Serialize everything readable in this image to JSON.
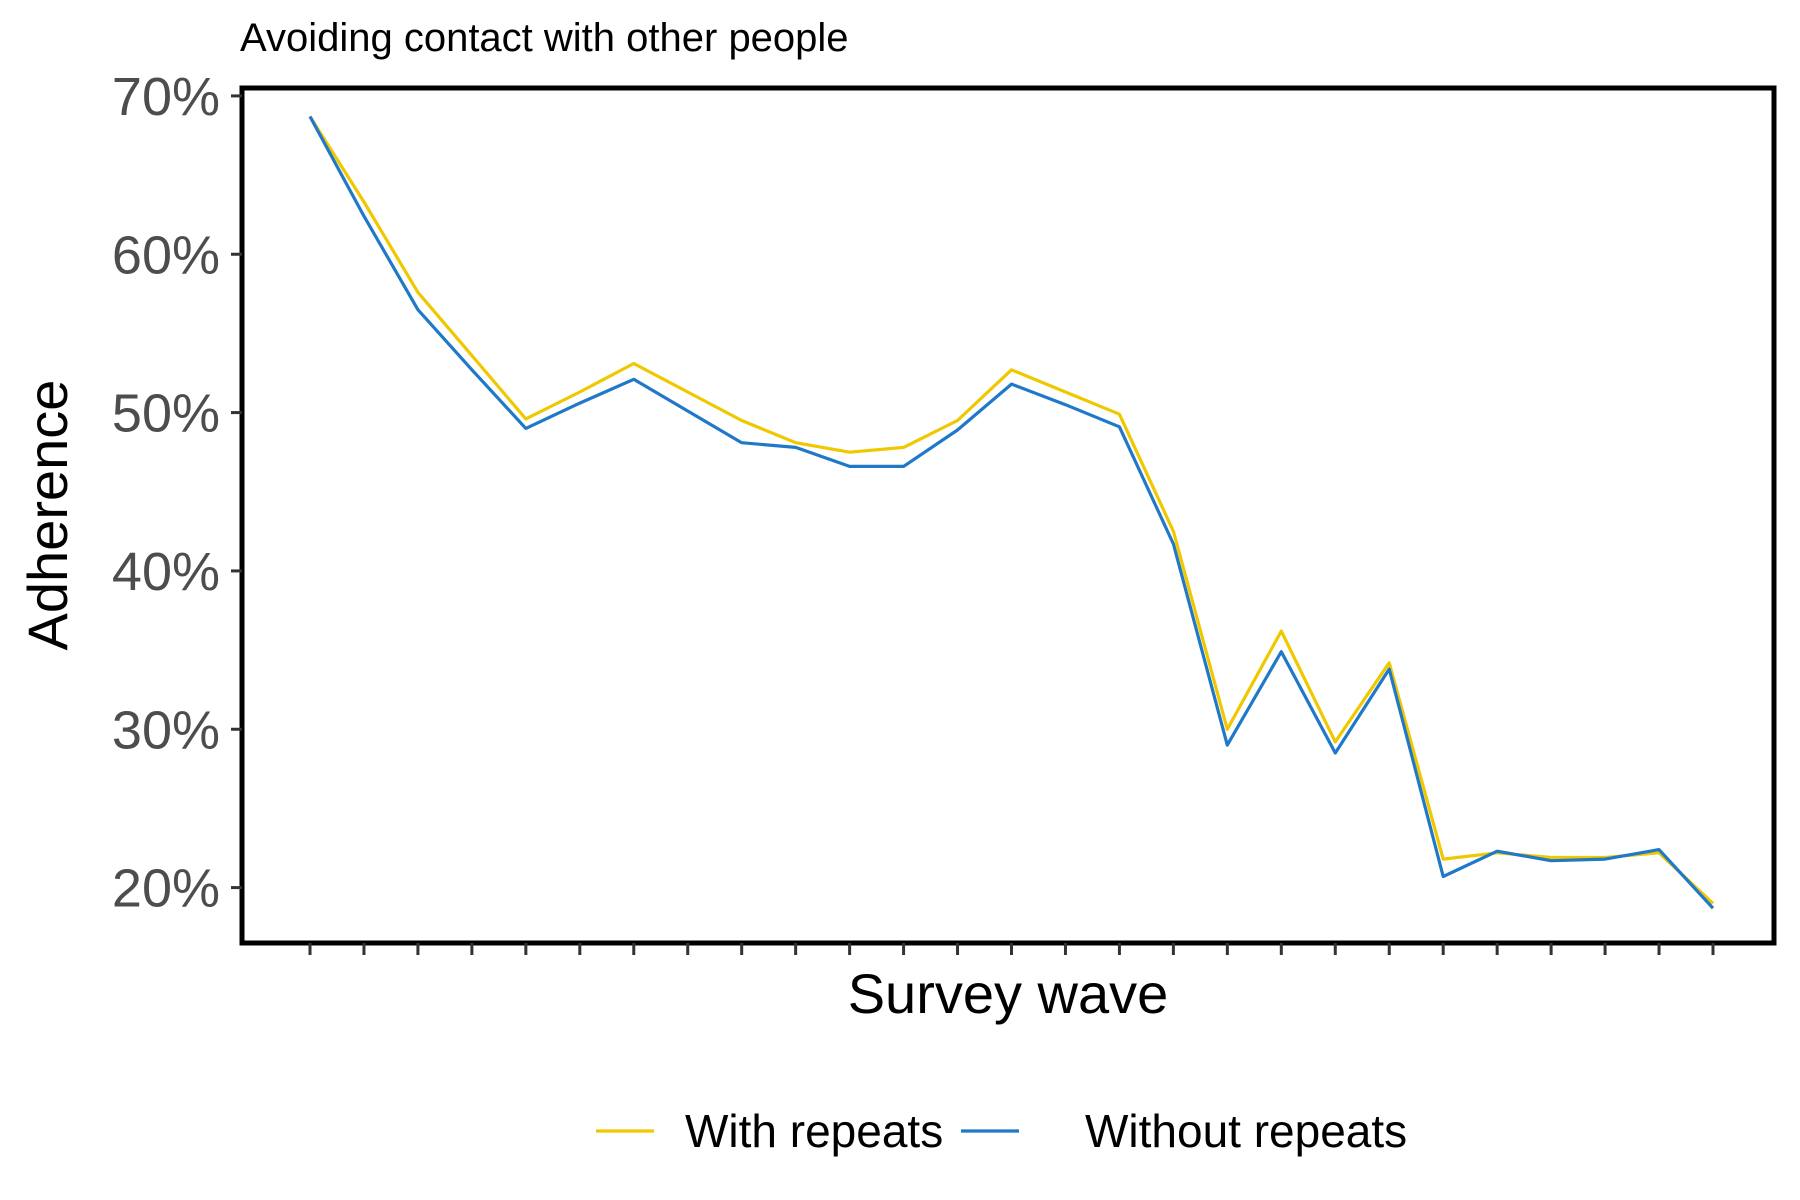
{
  "chart_data": {
    "type": "line",
    "title": "Avoiding contact with other people",
    "xlabel": "Survey wave",
    "ylabel": "Adherence",
    "x": [
      1,
      2,
      3,
      4,
      5,
      6,
      7,
      8,
      9,
      10,
      11,
      12,
      13,
      14,
      15,
      16,
      17,
      18,
      19,
      20,
      21,
      22,
      23,
      24,
      25,
      26,
      27
    ],
    "ylim": [
      0.165,
      0.705
    ],
    "yticks": [
      0.2,
      0.3,
      0.4,
      0.5,
      0.6,
      0.7
    ],
    "ytick_labels": [
      "20%",
      "30%",
      "40%",
      "50%",
      "60%",
      "70%"
    ],
    "grid": false,
    "legend_position": "bottom",
    "series": [
      {
        "name": "With repeats",
        "color": "#f0c800",
        "values": [
          0.687,
          0.633,
          0.576,
          0.536,
          0.496,
          0.513,
          0.531,
          0.513,
          0.495,
          0.481,
          0.475,
          0.478,
          0.495,
          0.527,
          0.513,
          0.499,
          0.425,
          0.3,
          0.362,
          0.292,
          0.342,
          0.218,
          0.222,
          0.219,
          0.219,
          0.222,
          0.19
        ]
      },
      {
        "name": "Without repeats",
        "color": "#1f78c8",
        "values": [
          0.687,
          0.624,
          0.565,
          0.527,
          0.49,
          0.506,
          0.521,
          0.501,
          0.481,
          0.478,
          0.466,
          0.466,
          0.489,
          0.518,
          0.505,
          0.491,
          0.417,
          0.29,
          0.349,
          0.285,
          0.338,
          0.207,
          0.223,
          0.217,
          0.218,
          0.224,
          0.187
        ]
      }
    ]
  }
}
